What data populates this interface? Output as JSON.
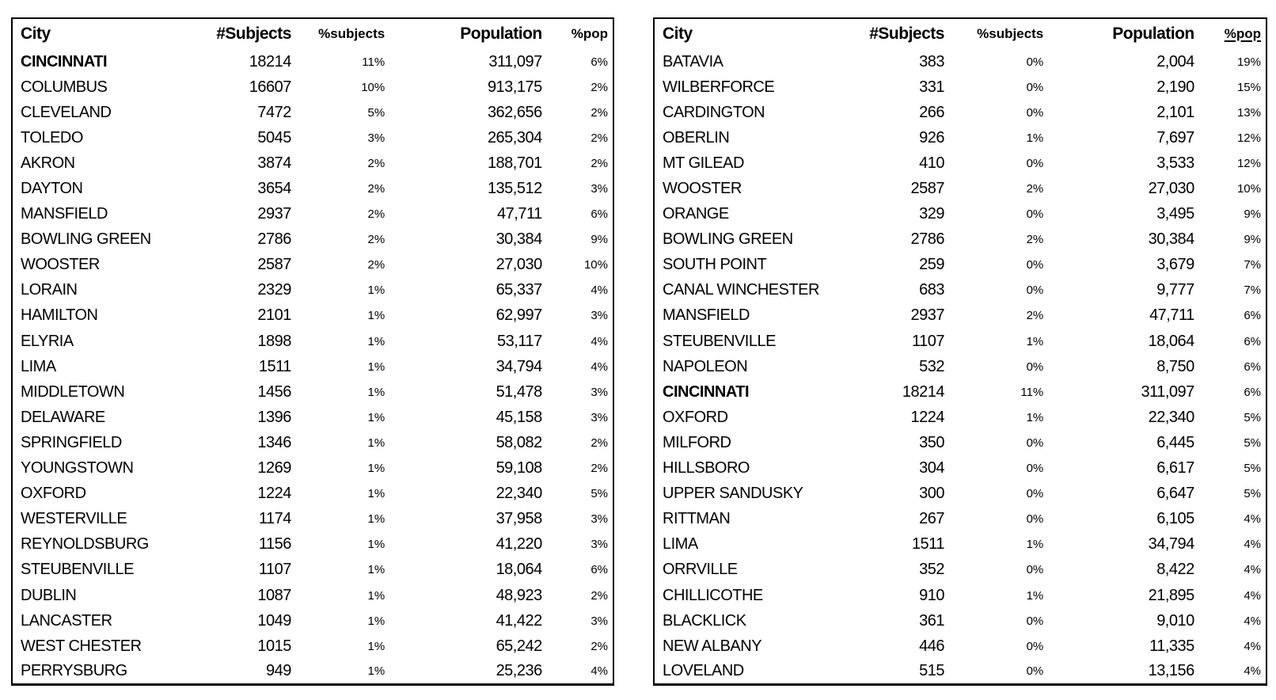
{
  "colors": {
    "text": "#000000",
    "border": "#000000",
    "background": "#ffffff"
  },
  "chart_data": [
    {
      "type": "table",
      "name": "cities-by-number-of-subjects",
      "columns": [
        "City",
        "#Subjects",
        "%subjects",
        "Population",
        "%pop"
      ],
      "underlined_column_index": null,
      "bold_row_indices": [
        0
      ],
      "rows": [
        [
          "CINCINNATI",
          "18214",
          "11%",
          "311,097",
          "6%"
        ],
        [
          "COLUMBUS",
          "16607",
          "10%",
          "913,175",
          "2%"
        ],
        [
          "CLEVELAND",
          "7472",
          "5%",
          "362,656",
          "2%"
        ],
        [
          "TOLEDO",
          "5045",
          "3%",
          "265,304",
          "2%"
        ],
        [
          "AKRON",
          "3874",
          "2%",
          "188,701",
          "2%"
        ],
        [
          "DAYTON",
          "3654",
          "2%",
          "135,512",
          "3%"
        ],
        [
          "MANSFIELD",
          "2937",
          "2%",
          "47,711",
          "6%"
        ],
        [
          "BOWLING GREEN",
          "2786",
          "2%",
          "30,384",
          "9%"
        ],
        [
          "WOOSTER",
          "2587",
          "2%",
          "27,030",
          "10%"
        ],
        [
          "LORAIN",
          "2329",
          "1%",
          "65,337",
          "4%"
        ],
        [
          "HAMILTON",
          "2101",
          "1%",
          "62,997",
          "3%"
        ],
        [
          "ELYRIA",
          "1898",
          "1%",
          "53,117",
          "4%"
        ],
        [
          "LIMA",
          "1511",
          "1%",
          "34,794",
          "4%"
        ],
        [
          "MIDDLETOWN",
          "1456",
          "1%",
          "51,478",
          "3%"
        ],
        [
          "DELAWARE",
          "1396",
          "1%",
          "45,158",
          "3%"
        ],
        [
          "SPRINGFIELD",
          "1346",
          "1%",
          "58,082",
          "2%"
        ],
        [
          "YOUNGSTOWN",
          "1269",
          "1%",
          "59,108",
          "2%"
        ],
        [
          "OXFORD",
          "1224",
          "1%",
          "22,340",
          "5%"
        ],
        [
          "WESTERVILLE",
          "1174",
          "1%",
          "37,958",
          "3%"
        ],
        [
          "REYNOLDSBURG",
          "1156",
          "1%",
          "41,220",
          "3%"
        ],
        [
          "STEUBENVILLE",
          "1107",
          "1%",
          "18,064",
          "6%"
        ],
        [
          "DUBLIN",
          "1087",
          "1%",
          "48,923",
          "2%"
        ],
        [
          "LANCASTER",
          "1049",
          "1%",
          "41,422",
          "3%"
        ],
        [
          "WEST CHESTER",
          "1015",
          "1%",
          "65,242",
          "2%"
        ],
        [
          "PERRYSBURG",
          "949",
          "1%",
          "25,236",
          "4%"
        ]
      ]
    },
    {
      "type": "table",
      "name": "cities-by-percent-of-population",
      "columns": [
        "City",
        "#Subjects",
        "%subjects",
        "Population",
        "%pop"
      ],
      "underlined_column_index": 4,
      "bold_row_indices": [
        13
      ],
      "rows": [
        [
          "BATAVIA",
          "383",
          "0%",
          "2,004",
          "19%"
        ],
        [
          "WILBERFORCE",
          "331",
          "0%",
          "2,190",
          "15%"
        ],
        [
          "CARDINGTON",
          "266",
          "0%",
          "2,101",
          "13%"
        ],
        [
          "OBERLIN",
          "926",
          "1%",
          "7,697",
          "12%"
        ],
        [
          "MT GILEAD",
          "410",
          "0%",
          "3,533",
          "12%"
        ],
        [
          "WOOSTER",
          "2587",
          "2%",
          "27,030",
          "10%"
        ],
        [
          "ORANGE",
          "329",
          "0%",
          "3,495",
          "9%"
        ],
        [
          "BOWLING GREEN",
          "2786",
          "2%",
          "30,384",
          "9%"
        ],
        [
          "SOUTH POINT",
          "259",
          "0%",
          "3,679",
          "7%"
        ],
        [
          "CANAL WINCHESTER",
          "683",
          "0%",
          "9,777",
          "7%"
        ],
        [
          "MANSFIELD",
          "2937",
          "2%",
          "47,711",
          "6%"
        ],
        [
          "STEUBENVILLE",
          "1107",
          "1%",
          "18,064",
          "6%"
        ],
        [
          "NAPOLEON",
          "532",
          "0%",
          "8,750",
          "6%"
        ],
        [
          "CINCINNATI",
          "18214",
          "11%",
          "311,097",
          "6%"
        ],
        [
          "OXFORD",
          "1224",
          "1%",
          "22,340",
          "5%"
        ],
        [
          "MILFORD",
          "350",
          "0%",
          "6,445",
          "5%"
        ],
        [
          "HILLSBORO",
          "304",
          "0%",
          "6,617",
          "5%"
        ],
        [
          "UPPER SANDUSKY",
          "300",
          "0%",
          "6,647",
          "5%"
        ],
        [
          "RITTMAN",
          "267",
          "0%",
          "6,105",
          "4%"
        ],
        [
          "LIMA",
          "1511",
          "1%",
          "34,794",
          "4%"
        ],
        [
          "ORRVILLE",
          "352",
          "0%",
          "8,422",
          "4%"
        ],
        [
          "CHILLICOTHE",
          "910",
          "1%",
          "21,895",
          "4%"
        ],
        [
          "BLACKLICK",
          "361",
          "0%",
          "9,010",
          "4%"
        ],
        [
          "NEW ALBANY",
          "446",
          "0%",
          "11,335",
          "4%"
        ],
        [
          "LOVELAND",
          "515",
          "0%",
          "13,156",
          "4%"
        ]
      ]
    }
  ]
}
